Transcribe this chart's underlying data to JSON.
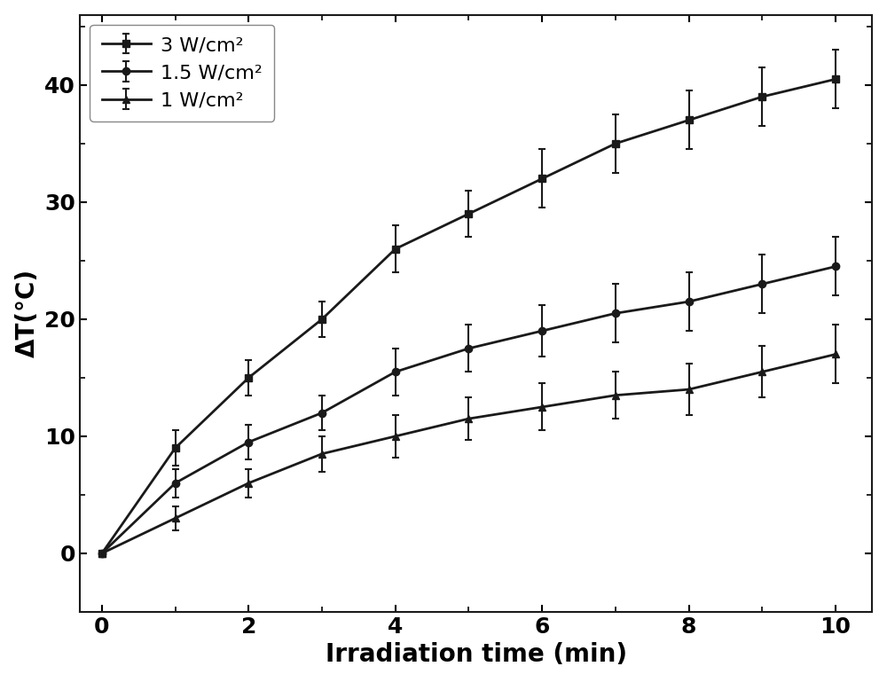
{
  "x": [
    0,
    1,
    2,
    3,
    4,
    5,
    6,
    7,
    8,
    9,
    10
  ],
  "series": [
    {
      "label": "3 W/cm²",
      "y": [
        0,
        9,
        15,
        20,
        26,
        29,
        32,
        35,
        37,
        39,
        40.5
      ],
      "yerr": [
        0,
        1.5,
        1.5,
        1.5,
        2.0,
        2.0,
        2.5,
        2.5,
        2.5,
        2.5,
        2.5
      ],
      "marker": "s",
      "markersize": 6
    },
    {
      "label": "1.5 W/cm²",
      "y": [
        0,
        6,
        9.5,
        12,
        15.5,
        17.5,
        19,
        20.5,
        21.5,
        23,
        24.5
      ],
      "yerr": [
        0,
        1.2,
        1.5,
        1.5,
        2.0,
        2.0,
        2.2,
        2.5,
        2.5,
        2.5,
        2.5
      ],
      "marker": "o",
      "markersize": 6
    },
    {
      "label": "1 W/cm²",
      "y": [
        0,
        3,
        6,
        8.5,
        10,
        11.5,
        12.5,
        13.5,
        14,
        15.5,
        17
      ],
      "yerr": [
        0,
        1.0,
        1.2,
        1.5,
        1.8,
        1.8,
        2.0,
        2.0,
        2.2,
        2.2,
        2.5
      ],
      "marker": "^",
      "markersize": 6
    }
  ],
  "line_color": "#1a1a1a",
  "xlabel": "Irradiation time (min)",
  "ylabel": "ΔT(°C)",
  "xlim": [
    -0.3,
    10.5
  ],
  "ylim": [
    -5,
    46
  ],
  "xticks": [
    0,
    2,
    4,
    6,
    8,
    10
  ],
  "yticks": [
    0,
    10,
    20,
    30,
    40
  ],
  "xlabel_fontsize": 20,
  "ylabel_fontsize": 20,
  "tick_fontsize": 18,
  "legend_fontsize": 16,
  "linewidth": 2.0,
  "capsize": 3,
  "background_color": "#ffffff",
  "figure_bg": "#ffffff"
}
